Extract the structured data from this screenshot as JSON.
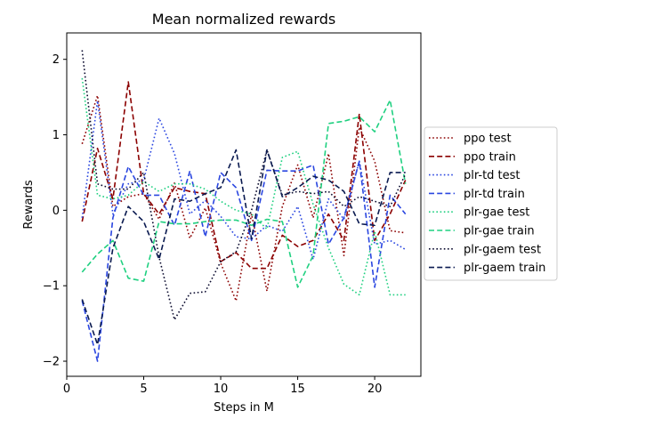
{
  "chart_data": {
    "type": "line",
    "title": "Mean normalized rewards",
    "xlabel": "Steps in M",
    "ylabel": "Rewards",
    "xlim": [
      0,
      23
    ],
    "ylim": [
      -2.2,
      2.35
    ],
    "xticks": [
      0,
      5,
      10,
      15,
      20
    ],
    "yticks": [
      -2,
      -1,
      0,
      1,
      2
    ],
    "xtick_labels": [
      "0",
      "5",
      "10",
      "15",
      "20"
    ],
    "ytick_labels": [
      "−2",
      "−1",
      "0",
      "1",
      "2"
    ],
    "grid": false,
    "legend_position": "center-right outside",
    "x": [
      1,
      2,
      3,
      4,
      5,
      6,
      7,
      8,
      9,
      10,
      11,
      12,
      13,
      14,
      15,
      16,
      17,
      18,
      19,
      20,
      21,
      22
    ],
    "series": [
      {
        "name": "ppo test",
        "color": "#8b0000",
        "style": "dotted",
        "values": [
          0.88,
          1.52,
          0.05,
          0.18,
          0.22,
          -0.12,
          0.36,
          -0.37,
          0.03,
          -0.7,
          -1.2,
          -0.05,
          -1.07,
          0.05,
          0.6,
          -0.1,
          0.75,
          -0.6,
          1.1,
          0.65,
          -0.27,
          -0.3
        ]
      },
      {
        "name": "ppo train",
        "color": "#8b0000",
        "style": "dashed",
        "values": [
          -0.15,
          0.82,
          0.15,
          1.7,
          0.22,
          -0.05,
          0.3,
          0.25,
          0.22,
          -0.68,
          -0.56,
          -0.77,
          -0.77,
          -0.33,
          -0.48,
          -0.4,
          -0.05,
          -0.4,
          1.28,
          -0.4,
          -0.05,
          0.4
        ]
      },
      {
        "name": "plr-td test",
        "color": "#2a46e0",
        "style": "dotted",
        "values": [
          -0.1,
          1.45,
          -0.05,
          0.35,
          0.4,
          1.22,
          0.75,
          -0.05,
          0.13,
          -0.08,
          -0.35,
          -0.38,
          -0.2,
          -0.28,
          0.05,
          -0.65,
          0.15,
          -0.12,
          0.65,
          -0.45,
          -0.4,
          -0.52
        ]
      },
      {
        "name": "plr-td train",
        "color": "#2a46e0",
        "style": "dashed",
        "values": [
          -1.2,
          -2.0,
          -0.1,
          0.58,
          0.2,
          0.2,
          -0.2,
          0.52,
          -0.35,
          0.5,
          0.3,
          -0.4,
          0.53,
          0.52,
          0.52,
          0.6,
          -0.45,
          -0.1,
          0.65,
          -1.02,
          0.2,
          -0.05
        ]
      },
      {
        "name": "plr-gae test",
        "color": "#1fd080",
        "style": "dotted",
        "values": [
          1.75,
          0.2,
          0.15,
          0.2,
          0.38,
          0.25,
          0.35,
          0.35,
          0.28,
          0.12,
          0.0,
          -0.05,
          -0.25,
          0.7,
          0.78,
          0.08,
          -0.5,
          -0.98,
          -1.12,
          -0.28,
          -1.12,
          -1.12
        ]
      },
      {
        "name": "plr-gae train",
        "color": "#1fd080",
        "style": "dashed",
        "values": [
          -0.82,
          -0.58,
          -0.4,
          -0.9,
          -0.94,
          -0.15,
          -0.18,
          -0.18,
          -0.15,
          -0.13,
          -0.13,
          -0.2,
          -0.12,
          -0.15,
          -1.02,
          -0.6,
          1.15,
          1.18,
          1.24,
          1.04,
          1.46,
          0.35
        ]
      },
      {
        "name": "plr-gaem test",
        "color": "#0a0a2e",
        "style": "dotted",
        "values": [
          2.12,
          0.35,
          0.28,
          0.28,
          0.5,
          -0.62,
          -1.45,
          -1.1,
          -1.08,
          -0.68,
          -0.55,
          0.0,
          0.8,
          0.2,
          0.25,
          0.22,
          0.25,
          0.05,
          0.18,
          0.12,
          0.05,
          0.48
        ]
      },
      {
        "name": "plr-gaem train",
        "color": "#0a1a50",
        "style": "dashed",
        "values": [
          -1.18,
          -1.78,
          -0.5,
          0.05,
          -0.15,
          -0.65,
          0.15,
          0.12,
          0.22,
          0.3,
          0.8,
          -0.38,
          0.8,
          0.18,
          0.3,
          0.45,
          0.4,
          0.25,
          -0.18,
          -0.2,
          0.5,
          0.5
        ]
      }
    ]
  }
}
